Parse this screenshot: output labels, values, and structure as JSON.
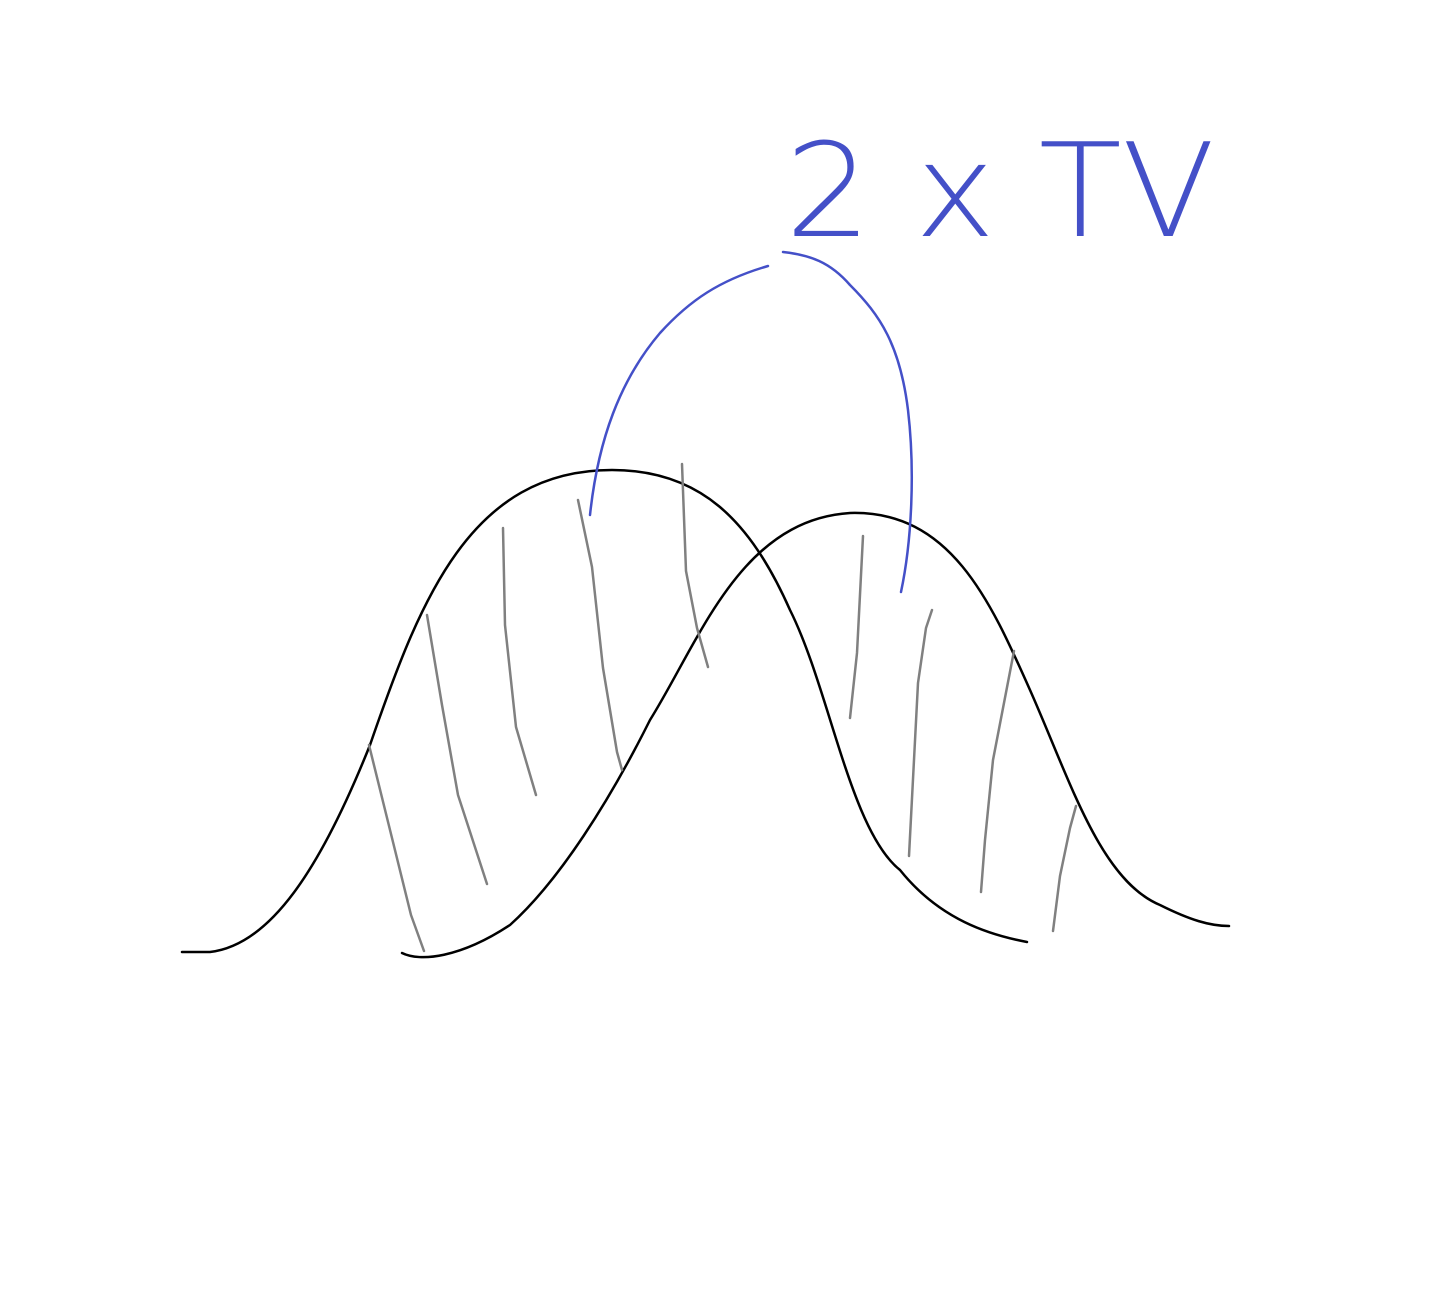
{
  "annotation": {
    "label": "2 x TV"
  }
}
